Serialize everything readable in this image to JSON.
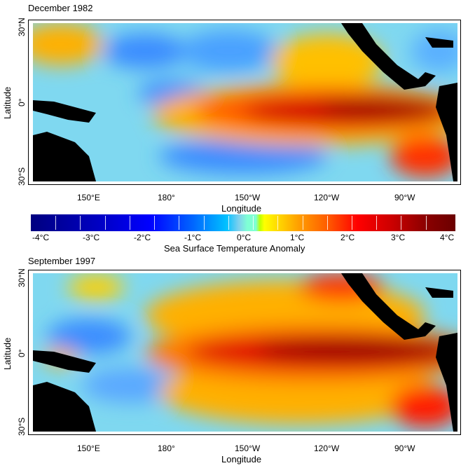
{
  "panels": [
    {
      "title": "December 1982",
      "ylabel": "Latitude",
      "xlabel": "Longitude",
      "lat_ticks": [
        "30°N",
        "0°",
        "30°S"
      ],
      "lon_ticks": [
        "150°E",
        "180°",
        "150°W",
        "120°W",
        "90°W"
      ]
    },
    {
      "title": "September 1997",
      "ylabel": "Latitude",
      "xlabel": "Longitude",
      "lat_ticks": [
        "30°N",
        "0°",
        "30°S"
      ],
      "lon_ticks": [
        "150°E",
        "180°",
        "150°W",
        "120°W",
        "90°W"
      ]
    }
  ],
  "colorbar": {
    "label": "Sea Surface Temperature Anomaly",
    "ticks": [
      "-4°C",
      "-3°C",
      "-2°C",
      "-1°C",
      "0°C",
      "1°C",
      "2°C",
      "3°C",
      "4°C"
    ],
    "range": [
      -4.2,
      4.2
    ]
  },
  "colors": {
    "land": "#000000",
    "neutral": "#7fffd4",
    "warm_core": "#8b0000",
    "cool": "#1e64ff"
  }
}
